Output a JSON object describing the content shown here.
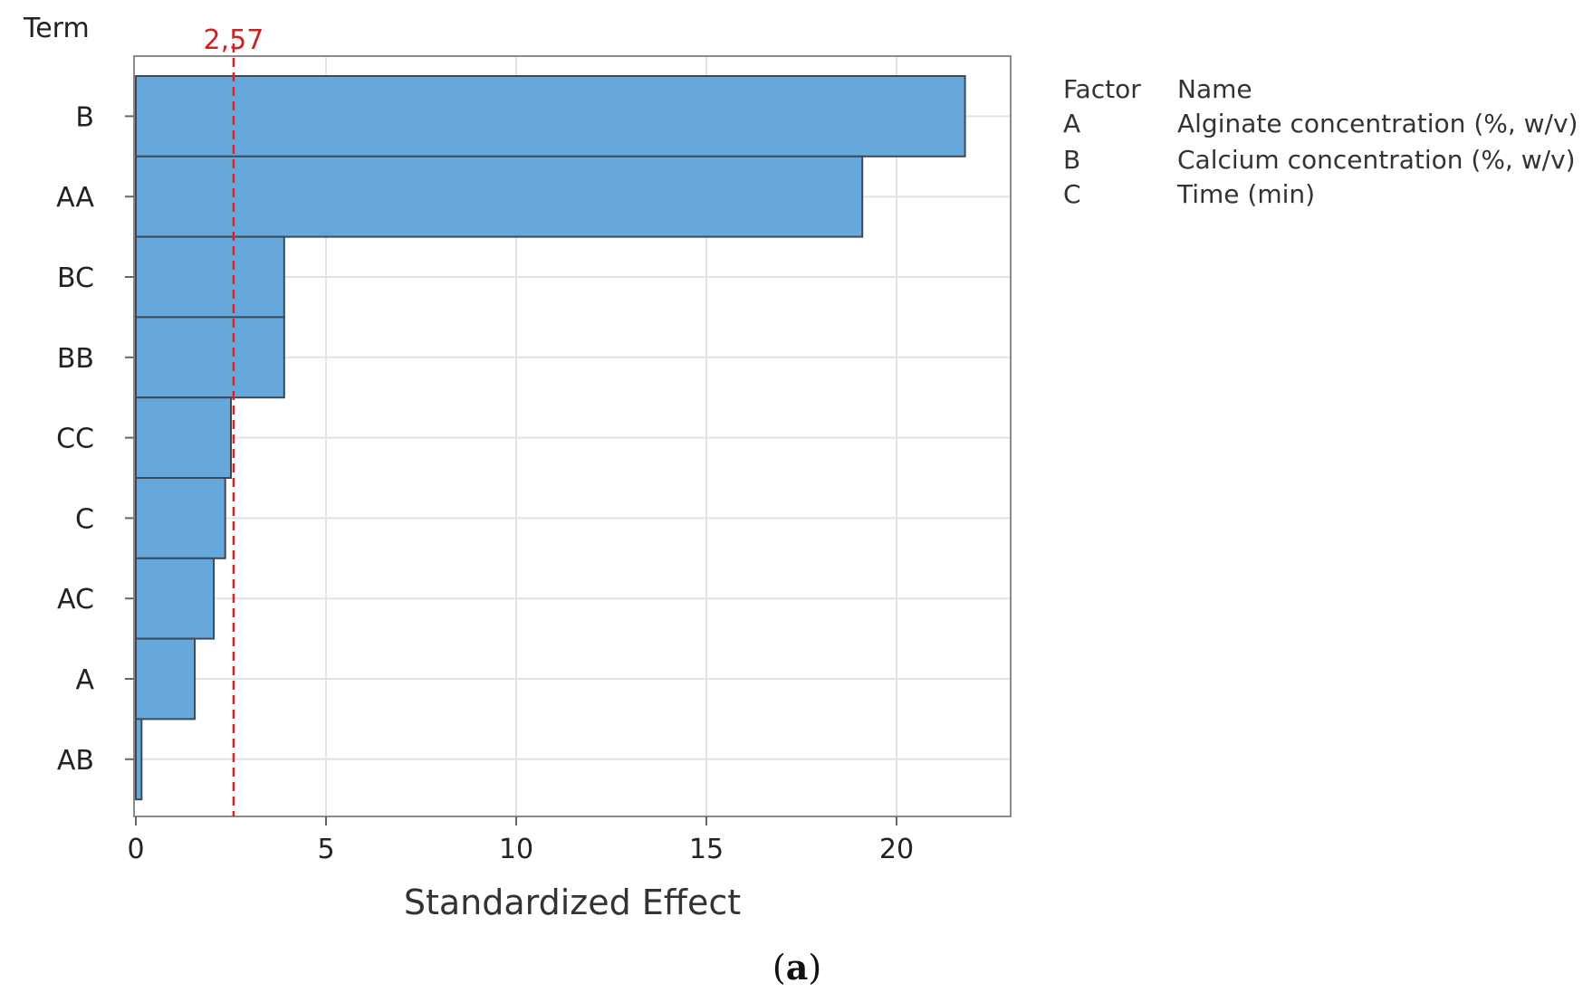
{
  "chart_data": {
    "type": "bar",
    "orientation": "horizontal",
    "categories": [
      "B",
      "AA",
      "BC",
      "BB",
      "CC",
      "C",
      "AC",
      "A",
      "AB"
    ],
    "values": [
      21.8,
      19.1,
      3.9,
      3.9,
      2.5,
      2.35,
      2.05,
      1.55,
      0.15
    ],
    "ylabel": "Term",
    "xlabel": "Standardized Effect",
    "xlim": [
      0,
      23
    ],
    "xticks": [
      0,
      5,
      10,
      15,
      20
    ],
    "reference_line": {
      "value": 2.57,
      "label": "2,57",
      "color": "#dd2222"
    },
    "grid": true,
    "bar_color": "#66a8dc",
    "bar_edge_color": "#3a4a5a",
    "legend": {
      "placement": "right",
      "header": [
        "Factor",
        "Name"
      ],
      "rows": [
        {
          "factor": "A",
          "name": "Alginate concentration (%, w/v)"
        },
        {
          "factor": "B",
          "name": "Calcium concentration (%, w/v)"
        },
        {
          "factor": "C",
          "name": "Time (min)"
        }
      ]
    }
  },
  "caption": {
    "open": "(",
    "letter": "a",
    "close": ")"
  }
}
